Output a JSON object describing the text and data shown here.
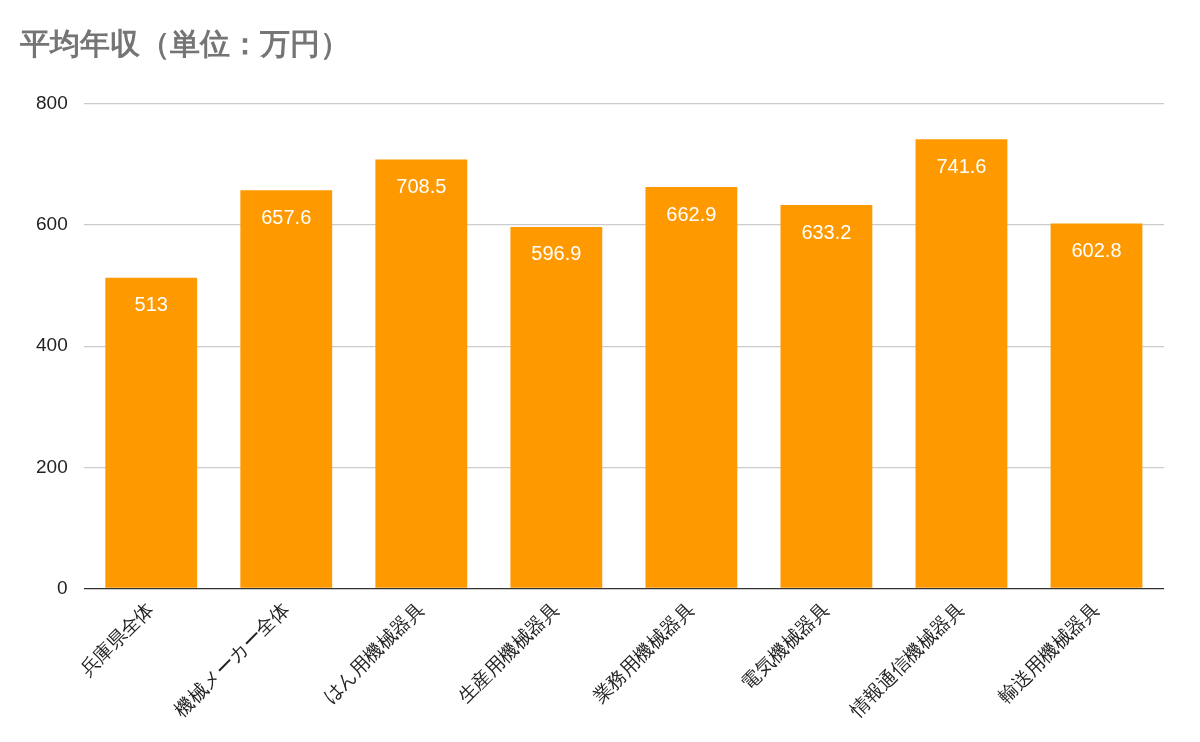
{
  "chart_data": {
    "type": "bar",
    "title": "平均年収（単位：万円）",
    "categories": [
      "兵庫県全体",
      "機械メーカー全体",
      "はん用機械器具",
      "生産用機械器具",
      "業務用機械器具",
      "電気機械器具",
      "情報通信機械器具",
      "輸送用機械器具"
    ],
    "values": [
      513,
      657.6,
      708.5,
      596.9,
      662.9,
      633.2,
      741.6,
      602.8
    ],
    "color": "#ff9900",
    "ylim": [
      0,
      800
    ],
    "yticks": [
      0,
      200,
      400,
      600,
      800
    ],
    "grid": "y",
    "legend": false,
    "data_labels": true
  }
}
